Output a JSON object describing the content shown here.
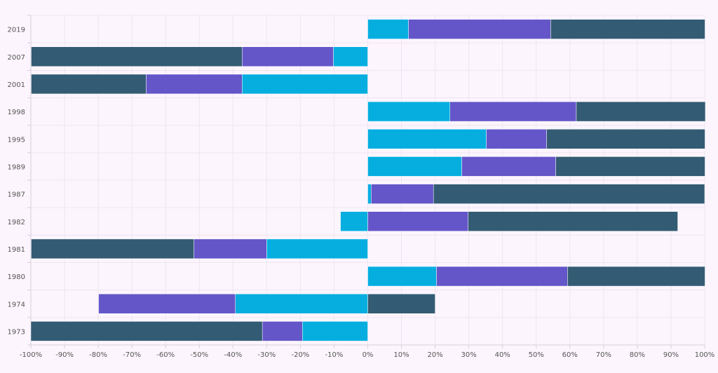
{
  "chart_data": {
    "type": "bar",
    "orientation": "horizontal",
    "stacked": true,
    "categories": [
      "2019",
      "2007",
      "2001",
      "1998",
      "1995",
      "1989",
      "1987",
      "1982",
      "1981",
      "1980",
      "1974",
      "1973"
    ],
    "series": [
      {
        "color": "#06aee0",
        "values": [
          12.1,
          -10.2,
          -37.3,
          24.4,
          35.2,
          27.9,
          1.0,
          -8.1,
          -30.0,
          20.4,
          -39.3,
          -19.4
        ]
      },
      {
        "color": "#6456c8",
        "values": [
          42.2,
          -27.1,
          -28.5,
          37.5,
          17.9,
          27.9,
          18.5,
          29.8,
          -21.6,
          38.9,
          -40.6,
          -11.9
        ]
      },
      {
        "color": "#335b74",
        "values": [
          45.8,
          -62.6,
          -34.1,
          38.3,
          47.0,
          44.3,
          80.5,
          62.2,
          -48.3,
          40.8,
          20.0,
          -68.7
        ]
      }
    ],
    "xlim": [
      -100,
      100
    ],
    "xticks": [
      "-100%",
      "-90%",
      "-80%",
      "-70%",
      "-60%",
      "-50%",
      "-40%",
      "-30%",
      "-20%",
      "-10%",
      "0%",
      "10%",
      "20%",
      "30%",
      "40%",
      "50%",
      "60%",
      "70%",
      "80%",
      "90%",
      "100%"
    ],
    "grid": true,
    "legend": "none"
  }
}
